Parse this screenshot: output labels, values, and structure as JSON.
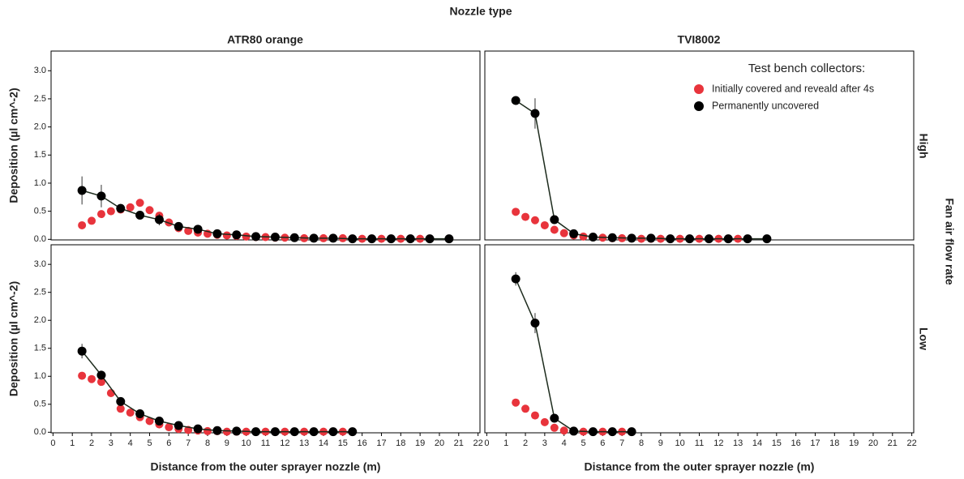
{
  "title": "Nozzle type",
  "columns": [
    "ATR80 orange",
    "TVI8002"
  ],
  "rows": [
    "High",
    "Low"
  ],
  "row_title": "Fan air flow rate",
  "legend_title": "Test bench collectors:",
  "chart_data": [
    {
      "type": "line",
      "ylabel": "Deposition (µl cm^-2)",
      "xlim": [
        -0.1,
        22.1
      ],
      "ylim": [
        -0.01,
        3.35
      ],
      "yticks": [
        {
          "value": 0,
          "label": "0.0"
        },
        0.5,
        {
          "value": 1,
          "label": "1.0"
        },
        1.5,
        {
          "value": 2,
          "label": "2.0"
        },
        2.5,
        {
          "value": 3,
          "label": "3.0"
        }
      ],
      "series": [
        {
          "name": "Initially covered and reveald after 4s",
          "color": "#e8343c",
          "x": [
            1.5,
            2,
            2.5,
            3,
            3.5,
            4,
            4.5,
            5,
            5.5,
            6,
            6.5,
            7,
            7.5,
            8,
            8.5,
            9,
            9.5,
            10,
            10.5,
            11,
            11.5,
            12,
            12.5,
            13,
            13.5,
            14,
            14.5,
            15,
            15.5,
            16,
            16.5,
            17,
            17.5,
            18,
            18.5,
            19,
            19.5
          ],
          "values": [
            0.25,
            0.33,
            0.45,
            0.5,
            0.53,
            0.57,
            0.65,
            0.52,
            0.42,
            0.3,
            0.2,
            0.15,
            0.12,
            0.1,
            0.08,
            0.07,
            0.06,
            0.05,
            0.04,
            0.04,
            0.03,
            0.03,
            0.03,
            0.02,
            0.02,
            0.02,
            0.02,
            0.02,
            0.01,
            0.01,
            0.01,
            0.01,
            0.01,
            0.01,
            0.01,
            0.01,
            0.01
          ]
        },
        {
          "name": "Permanently uncovered",
          "color": "#000000",
          "connect": true,
          "x": [
            1.5,
            2.5,
            3.5,
            4.5,
            5.5,
            6.5,
            7.5,
            8.5,
            9.5,
            10.5,
            11.5,
            12.5,
            13.5,
            14.5,
            15.5,
            16.5,
            17.5,
            18.5,
            19.5,
            20.5
          ],
          "values": [
            0.87,
            0.77,
            0.55,
            0.43,
            0.35,
            0.23,
            0.18,
            0.1,
            0.08,
            0.05,
            0.04,
            0.03,
            0.02,
            0.02,
            0.01,
            0.01,
            0.01,
            0.01,
            0.01,
            0.01
          ],
          "errors": [
            0.25,
            0.2,
            0.08,
            0.05,
            0.1,
            0.06,
            0.03,
            0.02,
            0.01,
            0,
            0,
            0,
            0,
            0,
            0,
            0,
            0,
            0,
            0,
            0
          ]
        }
      ]
    },
    {
      "type": "line",
      "xlim": [
        -0.1,
        22.1
      ],
      "ylim": [
        -0.01,
        3.35
      ],
      "series": [
        {
          "name": "Initially covered and reveald after 4s",
          "color": "#e8343c",
          "x": [
            1.5,
            2,
            2.5,
            3,
            3.5,
            4,
            4.5,
            5,
            5.5,
            6,
            6.5,
            7,
            7.5,
            8,
            8.5,
            9,
            9.5,
            10,
            10.5,
            11,
            11.5,
            12,
            12.5,
            13
          ],
          "values": [
            0.49,
            0.4,
            0.34,
            0.25,
            0.17,
            0.11,
            0.07,
            0.05,
            0.04,
            0.03,
            0.02,
            0.02,
            0.02,
            0.01,
            0.01,
            0.01,
            0.01,
            0.01,
            0.01,
            0.01,
            0.01,
            0.01,
            0.01,
            0.01
          ]
        },
        {
          "name": "Permanently uncovered",
          "color": "#000000",
          "connect": true,
          "x": [
            1.5,
            2.5,
            3.5,
            4.5,
            5.5,
            6.5,
            7.5,
            8.5,
            9.5,
            10.5,
            11.5,
            12.5,
            13.5,
            14.5
          ],
          "values": [
            2.47,
            2.24,
            0.35,
            0.1,
            0.04,
            0.03,
            0.02,
            0.02,
            0.01,
            0.01,
            0.01,
            0.01,
            0.01,
            0.01
          ],
          "errors": [
            0.05,
            0.27,
            0.05,
            0.02,
            0,
            0,
            0,
            0,
            0,
            0,
            0,
            0,
            0,
            0
          ]
        }
      ]
    },
    {
      "type": "line",
      "ylabel": "Deposition (µl cm^-2)",
      "xlabel": "Distance from the outer sprayer nozzle (m)",
      "xlim": [
        -0.1,
        22.1
      ],
      "ylim": [
        -0.01,
        3.35
      ],
      "xticks": [
        0,
        1,
        2,
        3,
        4,
        5,
        6,
        7,
        8,
        9,
        10,
        11,
        12,
        13,
        14,
        15,
        16,
        17,
        18,
        19,
        20,
        21,
        22
      ],
      "yticks": [
        {
          "value": 0,
          "label": "0.0"
        },
        0.5,
        {
          "value": 1,
          "label": "1.0"
        },
        1.5,
        {
          "value": 2,
          "label": "2.0"
        },
        2.5,
        {
          "value": 3,
          "label": "3.0"
        }
      ],
      "series": [
        {
          "name": "Initially covered and reveald after 4s",
          "color": "#e8343c",
          "x": [
            1.5,
            2,
            2.5,
            3,
            3.5,
            4,
            4.5,
            5,
            5.5,
            6,
            6.5,
            7,
            7.5,
            8,
            8.5,
            9,
            9.5,
            10,
            10.5,
            11,
            11.5,
            12,
            12.5,
            13,
            13.5,
            14,
            14.5,
            15
          ],
          "values": [
            1.01,
            0.95,
            0.9,
            0.7,
            0.42,
            0.35,
            0.27,
            0.2,
            0.14,
            0.09,
            0.06,
            0.04,
            0.03,
            0.02,
            0.02,
            0.01,
            0.01,
            0.01,
            0.01,
            0.01,
            0.01,
            0.01,
            0.01,
            0.01,
            0.01,
            0.01,
            0.01,
            0.01
          ]
        },
        {
          "name": "Permanently uncovered",
          "color": "#000000",
          "connect": true,
          "x": [
            1.5,
            2.5,
            3.5,
            4.5,
            5.5,
            6.5,
            7.5,
            8.5,
            9.5,
            10.5,
            11.5,
            12.5,
            13.5,
            14.5,
            15.5
          ],
          "values": [
            1.45,
            1.02,
            0.55,
            0.33,
            0.2,
            0.12,
            0.06,
            0.03,
            0.02,
            0.01,
            0.01,
            0.01,
            0.01,
            0.01,
            0.01
          ],
          "errors": [
            0.13,
            0.08,
            0.03,
            0.03,
            0.02,
            0.01,
            0,
            0,
            0,
            0,
            0,
            0,
            0,
            0,
            0
          ]
        }
      ]
    },
    {
      "type": "line",
      "xlabel": "Distance from the outer sprayer nozzle (m)",
      "xlim": [
        -0.1,
        22.1
      ],
      "ylim": [
        -0.01,
        3.35
      ],
      "xticks": [
        0,
        1,
        2,
        3,
        4,
        5,
        6,
        7,
        8,
        9,
        10,
        11,
        12,
        13,
        14,
        15,
        16,
        17,
        18,
        19,
        20,
        21,
        22
      ],
      "series": [
        {
          "name": "Initially covered and reveald after 4s",
          "color": "#e8343c",
          "x": [
            1.5,
            2,
            2.5,
            3,
            3.5,
            4,
            4.5,
            5,
            5.5,
            6,
            6.5,
            7
          ],
          "values": [
            0.53,
            0.42,
            0.3,
            0.18,
            0.08,
            0.03,
            0.02,
            0.01,
            0.01,
            0.01,
            0.01,
            0.01
          ]
        },
        {
          "name": "Permanently uncovered",
          "color": "#000000",
          "connect": true,
          "x": [
            1.5,
            2.5,
            3.5,
            4.5,
            5.5,
            6.5,
            7.5
          ],
          "values": [
            2.74,
            1.95,
            0.25,
            0.02,
            0.01,
            0.01,
            0.01
          ],
          "errors": [
            0.12,
            0.18,
            0.04,
            0,
            0,
            0,
            0
          ]
        }
      ]
    }
  ]
}
